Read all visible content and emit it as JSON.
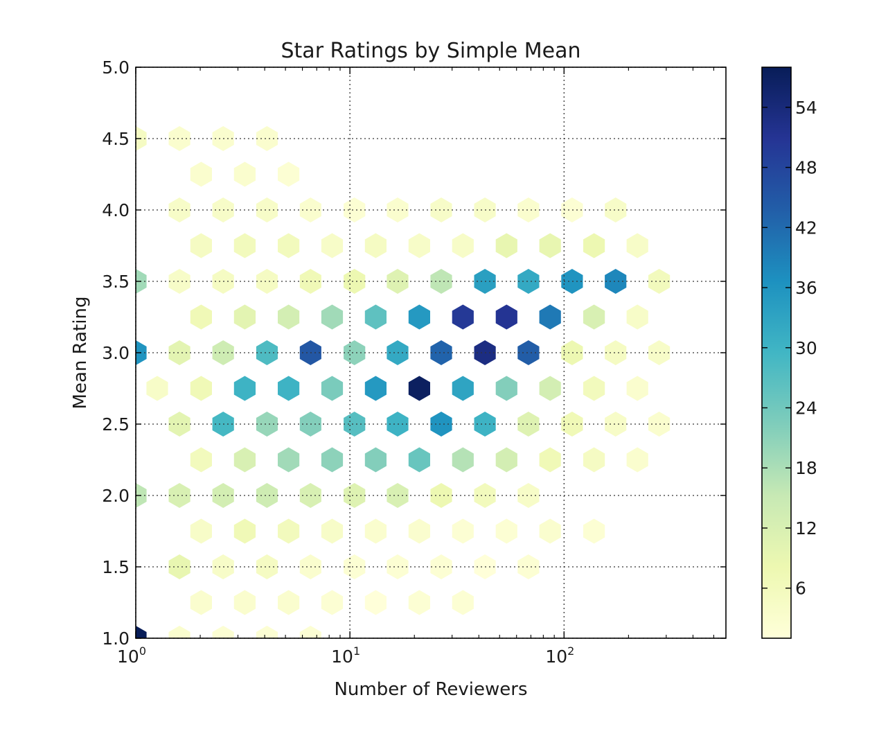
{
  "chart_data": {
    "type": "heatmap",
    "subtype": "hexbin",
    "title": "Star Ratings by Simple Mean",
    "xlabel": "Number of Reviewers",
    "ylabel": "Mean Rating",
    "x_scale": "log",
    "x_ticks": [
      {
        "base": "10",
        "exp": "0",
        "value": 1
      },
      {
        "base": "10",
        "exp": "1",
        "value": 10
      },
      {
        "base": "10",
        "exp": "2",
        "value": 100
      }
    ],
    "xlim": [
      1,
      570
    ],
    "ylim": [
      1.0,
      5.0
    ],
    "y_ticks": [
      "1.0",
      "1.5",
      "2.0",
      "2.5",
      "3.0",
      "3.5",
      "4.0",
      "4.5",
      "5.0"
    ],
    "grid": true,
    "colormap": "YlGnBu",
    "colorbar": {
      "range": [
        1,
        58
      ],
      "ticks": [
        "6",
        "12",
        "18",
        "24",
        "30",
        "36",
        "42",
        "48",
        "54"
      ]
    },
    "hex_x_points": [
      1,
      1.26,
      1.6,
      2.02,
      2.56,
      3.23,
      4.1,
      5.17,
      6.55,
      8.26,
      10.5,
      13.2,
      16.7,
      21.1,
      26.7,
      33.7,
      42.7,
      53.9,
      68.2,
      86.1,
      109,
      138,
      174,
      220,
      278,
      352,
      445,
      563
    ],
    "hex_y_points": [
      1.0,
      1.25,
      1.5,
      1.75,
      2.0,
      2.25,
      2.5,
      2.75,
      3.0,
      3.25,
      3.5,
      3.75,
      4.0,
      4.25,
      4.5,
      4.75,
      5.0
    ],
    "bins": [
      [
        0,
        0,
        58
      ],
      [
        2,
        0,
        3
      ],
      [
        4,
        0,
        2
      ],
      [
        6,
        0,
        2
      ],
      [
        8,
        0,
        2
      ],
      [
        3,
        1,
        3
      ],
      [
        5,
        1,
        3
      ],
      [
        7,
        1,
        3
      ],
      [
        9,
        1,
        2
      ],
      [
        11,
        1,
        1
      ],
      [
        13,
        1,
        2
      ],
      [
        15,
        1,
        2
      ],
      [
        2,
        2,
        9
      ],
      [
        4,
        2,
        4
      ],
      [
        6,
        2,
        5
      ],
      [
        8,
        2,
        3
      ],
      [
        10,
        2,
        2
      ],
      [
        12,
        2,
        2
      ],
      [
        14,
        2,
        2
      ],
      [
        16,
        2,
        1
      ],
      [
        18,
        2,
        2
      ],
      [
        3,
        3,
        4
      ],
      [
        5,
        3,
        7
      ],
      [
        7,
        3,
        6
      ],
      [
        9,
        3,
        4
      ],
      [
        11,
        3,
        3
      ],
      [
        13,
        3,
        3
      ],
      [
        15,
        3,
        2
      ],
      [
        17,
        3,
        2
      ],
      [
        19,
        3,
        3
      ],
      [
        21,
        3,
        2
      ],
      [
        0,
        4,
        16
      ],
      [
        2,
        4,
        12
      ],
      [
        4,
        4,
        13
      ],
      [
        6,
        4,
        14
      ],
      [
        8,
        4,
        12
      ],
      [
        10,
        4,
        11
      ],
      [
        12,
        4,
        12
      ],
      [
        14,
        4,
        8
      ],
      [
        16,
        4,
        6
      ],
      [
        18,
        4,
        4
      ],
      [
        3,
        5,
        6
      ],
      [
        5,
        5,
        12
      ],
      [
        7,
        5,
        19
      ],
      [
        9,
        5,
        21
      ],
      [
        11,
        5,
        22
      ],
      [
        13,
        5,
        25
      ],
      [
        15,
        5,
        17
      ],
      [
        17,
        5,
        13
      ],
      [
        19,
        5,
        7
      ],
      [
        21,
        5,
        5
      ],
      [
        23,
        5,
        3
      ],
      [
        2,
        6,
        10
      ],
      [
        4,
        6,
        29
      ],
      [
        6,
        6,
        20
      ],
      [
        8,
        6,
        22
      ],
      [
        10,
        6,
        27
      ],
      [
        12,
        6,
        30
      ],
      [
        14,
        6,
        36
      ],
      [
        16,
        6,
        30
      ],
      [
        18,
        6,
        11
      ],
      [
        20,
        6,
        7
      ],
      [
        22,
        6,
        4
      ],
      [
        24,
        6,
        3
      ],
      [
        1,
        7,
        4
      ],
      [
        3,
        7,
        7
      ],
      [
        5,
        7,
        30
      ],
      [
        7,
        7,
        30
      ],
      [
        9,
        7,
        23
      ],
      [
        11,
        7,
        35
      ],
      [
        13,
        7,
        57
      ],
      [
        15,
        7,
        33
      ],
      [
        17,
        7,
        22
      ],
      [
        19,
        7,
        13
      ],
      [
        21,
        7,
        6
      ],
      [
        23,
        7,
        3
      ],
      [
        0,
        8,
        36
      ],
      [
        2,
        8,
        10
      ],
      [
        4,
        8,
        14
      ],
      [
        6,
        8,
        28
      ],
      [
        8,
        8,
        45
      ],
      [
        10,
        8,
        21
      ],
      [
        12,
        8,
        32
      ],
      [
        14,
        8,
        43
      ],
      [
        16,
        8,
        53
      ],
      [
        18,
        8,
        44
      ],
      [
        20,
        8,
        8
      ],
      [
        22,
        8,
        5
      ],
      [
        24,
        8,
        4
      ],
      [
        3,
        9,
        7
      ],
      [
        5,
        9,
        10
      ],
      [
        7,
        9,
        13
      ],
      [
        9,
        9,
        19
      ],
      [
        11,
        9,
        26
      ],
      [
        13,
        9,
        35
      ],
      [
        15,
        9,
        50
      ],
      [
        17,
        9,
        51
      ],
      [
        19,
        9,
        40
      ],
      [
        21,
        9,
        12
      ],
      [
        23,
        9,
        4
      ],
      [
        0,
        10,
        19
      ],
      [
        2,
        10,
        4
      ],
      [
        4,
        10,
        5
      ],
      [
        6,
        10,
        5
      ],
      [
        8,
        10,
        7
      ],
      [
        10,
        10,
        8
      ],
      [
        12,
        10,
        11
      ],
      [
        14,
        10,
        16
      ],
      [
        16,
        10,
        34
      ],
      [
        18,
        10,
        32
      ],
      [
        20,
        10,
        36
      ],
      [
        22,
        10,
        38
      ],
      [
        24,
        10,
        6
      ],
      [
        3,
        11,
        5
      ],
      [
        5,
        11,
        6
      ],
      [
        7,
        11,
        6
      ],
      [
        9,
        11,
        4
      ],
      [
        11,
        11,
        5
      ],
      [
        13,
        11,
        4
      ],
      [
        15,
        11,
        4
      ],
      [
        17,
        11,
        9
      ],
      [
        19,
        11,
        9
      ],
      [
        21,
        11,
        8
      ],
      [
        23,
        11,
        4
      ],
      [
        2,
        12,
        4
      ],
      [
        4,
        12,
        4
      ],
      [
        6,
        12,
        4
      ],
      [
        8,
        12,
        3
      ],
      [
        10,
        12,
        2
      ],
      [
        12,
        12,
        3
      ],
      [
        14,
        12,
        4
      ],
      [
        16,
        12,
        4
      ],
      [
        18,
        12,
        3
      ],
      [
        20,
        12,
        2
      ],
      [
        22,
        12,
        4
      ],
      [
        3,
        13,
        3
      ],
      [
        5,
        13,
        3
      ],
      [
        7,
        13,
        2
      ],
      [
        0,
        14,
        5
      ],
      [
        2,
        14,
        3
      ],
      [
        4,
        14,
        3
      ],
      [
        6,
        14,
        3
      ]
    ]
  }
}
